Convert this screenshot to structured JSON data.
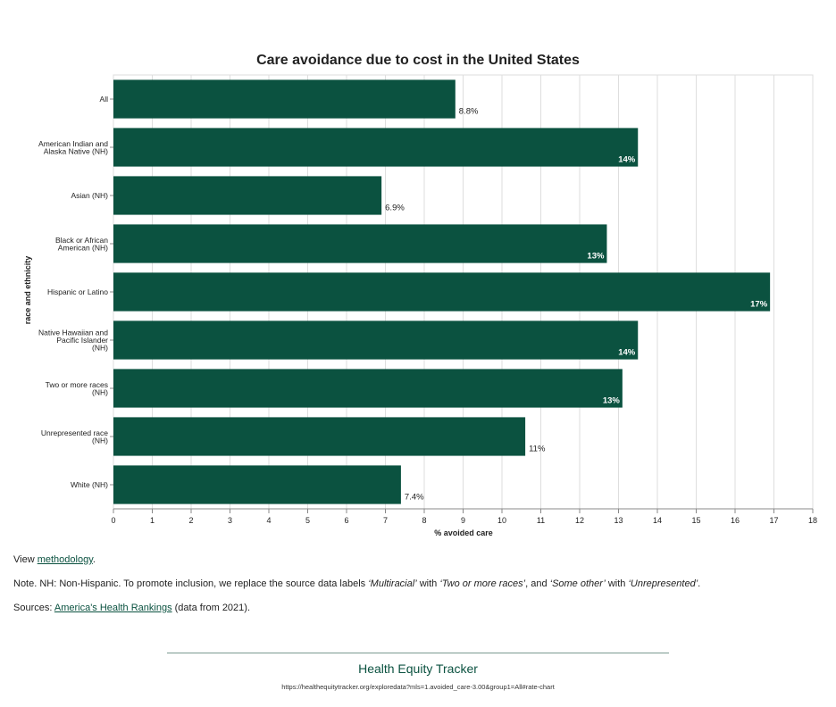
{
  "chart_data": {
    "type": "bar",
    "orientation": "horizontal",
    "title": "Care avoidance due to cost in the United States",
    "xlabel": "% avoided care",
    "ylabel": "race and ethnicity",
    "xlim": [
      0,
      18
    ],
    "xticks": [
      "0",
      "1",
      "2",
      "3",
      "4",
      "5",
      "6",
      "7",
      "8",
      "9",
      "10",
      "11",
      "12",
      "13",
      "14",
      "15",
      "16",
      "17",
      "18"
    ],
    "grid": true,
    "bar_color": "#0b5240",
    "categories": [
      [
        "All"
      ],
      [
        "American Indian and",
        "Alaska Native (NH)"
      ],
      [
        "Asian (NH)"
      ],
      [
        "Black or African",
        "American (NH)"
      ],
      [
        "Hispanic or Latino"
      ],
      [
        "Native Hawaiian and",
        "Pacific Islander",
        "(NH)"
      ],
      [
        "Two or more races",
        "(NH)"
      ],
      [
        "Unrepresented race",
        "(NH)"
      ],
      [
        "White (NH)"
      ]
    ],
    "values": [
      8.8,
      13.5,
      6.9,
      12.7,
      16.9,
      13.5,
      13.1,
      10.6,
      7.4
    ],
    "labels": [
      "8.8%",
      "14%",
      "6.9%",
      "13%",
      "17%",
      "14%",
      "13%",
      "11%",
      "7.4%"
    ]
  },
  "notes": {
    "view_prefix": "View ",
    "view_link": "methodology",
    "view_suffix": ".",
    "note_1": "Note. NH: Non-Hispanic. To promote inclusion, we replace the source data labels ",
    "note_q1": "‘Multiracial’",
    "note_2": " with ",
    "note_q2": "‘Two or more races’",
    "note_3": ", and ",
    "note_q3": "‘Some other’",
    "note_4": " with ",
    "note_q4": "‘Unrepresented’",
    "note_5": ".",
    "sources_prefix": "Sources: ",
    "sources_link": "America's Health Rankings",
    "sources_suffix": " (data from 2021)."
  },
  "footer": {
    "title": "Health Equity Tracker",
    "url": "https://healthequitytracker.org/exploredata?mls=1.avoided_care-3.00&group1=All#rate-chart"
  }
}
